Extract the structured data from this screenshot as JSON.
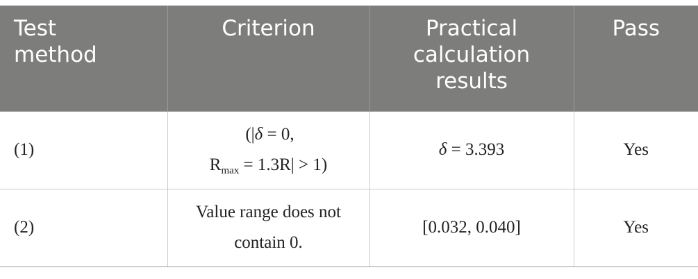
{
  "table": {
    "headers": {
      "test_method": "Test method",
      "criterion": "Criterion",
      "practical": "Practical calculation results",
      "pass": "Pass"
    },
    "rows": [
      {
        "method": "(1)",
        "criterion_line1_pre": "(|",
        "criterion_line1_sym": "δ",
        "criterion_line1_post": " = 0,",
        "criterion_line2_pre": "R",
        "criterion_line2_sub": "max",
        "criterion_line2_post": " = 1.3R| > 1)",
        "result_sym": "δ",
        "result_post": " = 3.393",
        "pass": "Yes"
      },
      {
        "method": "(2)",
        "criterion_line1": "Value range does not",
        "criterion_line2": "contain 0.",
        "result": "[0.032, 0.040]",
        "pass": "Yes"
      }
    ]
  }
}
